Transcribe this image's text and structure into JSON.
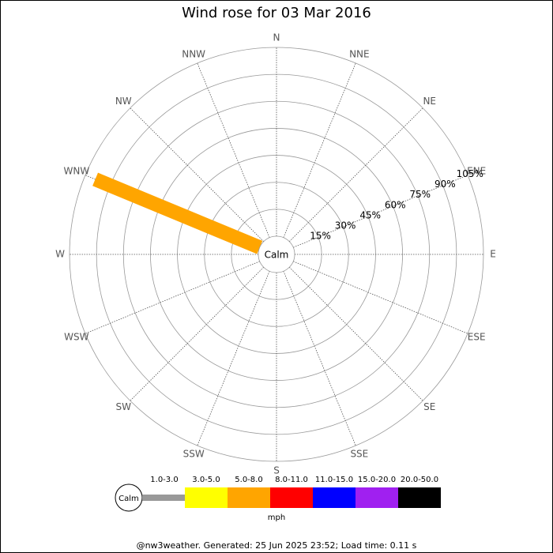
{
  "chart_data": {
    "type": "windrose",
    "title": "Wind rose for 03 Mar 2016",
    "directions": [
      "N",
      "NNE",
      "NE",
      "ENE",
      "E",
      "ESE",
      "SE",
      "SSE",
      "S",
      "SSW",
      "SW",
      "WSW",
      "W",
      "WNW",
      "NW",
      "NNW"
    ],
    "calm_label": "Calm",
    "rlim": [
      0,
      105
    ],
    "rticks": [
      {
        "value": 15,
        "label": "15%"
      },
      {
        "value": 30,
        "label": "30%"
      },
      {
        "value": 45,
        "label": "45%"
      },
      {
        "value": 60,
        "label": "60%"
      },
      {
        "value": 75,
        "label": "75%"
      },
      {
        "value": 90,
        "label": "90%"
      },
      {
        "value": 105,
        "label": "105%"
      }
    ],
    "series": [
      {
        "name": "1.0-3.0",
        "color": "#999999",
        "values": [
          0,
          0,
          0,
          0,
          0,
          0,
          0,
          0,
          0,
          0,
          0,
          0,
          0,
          0,
          0,
          0
        ]
      },
      {
        "name": "3.0-5.0",
        "color": "#ffff00",
        "values": [
          0,
          0,
          0,
          0,
          0,
          0,
          0,
          0,
          0,
          0,
          0,
          0,
          0,
          0,
          0,
          0
        ]
      },
      {
        "name": "5.0-8.0",
        "color": "#ffa500",
        "values": [
          0,
          0,
          0,
          0,
          0,
          0,
          0,
          0,
          0,
          0,
          0,
          0,
          0,
          99,
          0,
          0
        ]
      },
      {
        "name": "8.0-11.0",
        "color": "#ff0000",
        "values": [
          0,
          0,
          0,
          0,
          0,
          0,
          0,
          0,
          0,
          0,
          0,
          0,
          0,
          0,
          0,
          0
        ]
      },
      {
        "name": "11.0-15.0",
        "color": "#0000ff",
        "values": [
          0,
          0,
          0,
          0,
          0,
          0,
          0,
          0,
          0,
          0,
          0,
          0,
          0,
          0,
          0,
          0
        ]
      },
      {
        "name": "15.0-20.0",
        "color": "#a020f0",
        "values": [
          0,
          0,
          0,
          0,
          0,
          0,
          0,
          0,
          0,
          0,
          0,
          0,
          0,
          0,
          0,
          0
        ]
      },
      {
        "name": "20.0-50.0",
        "color": "#000000",
        "values": [
          0,
          0,
          0,
          0,
          0,
          0,
          0,
          0,
          0,
          0,
          0,
          0,
          0,
          0,
          0,
          0
        ]
      }
    ],
    "legend_unit": "mph",
    "footer": "@nw3weather. Generated: 25 Jun 2025 23:52; Load time: 0.11 s"
  }
}
